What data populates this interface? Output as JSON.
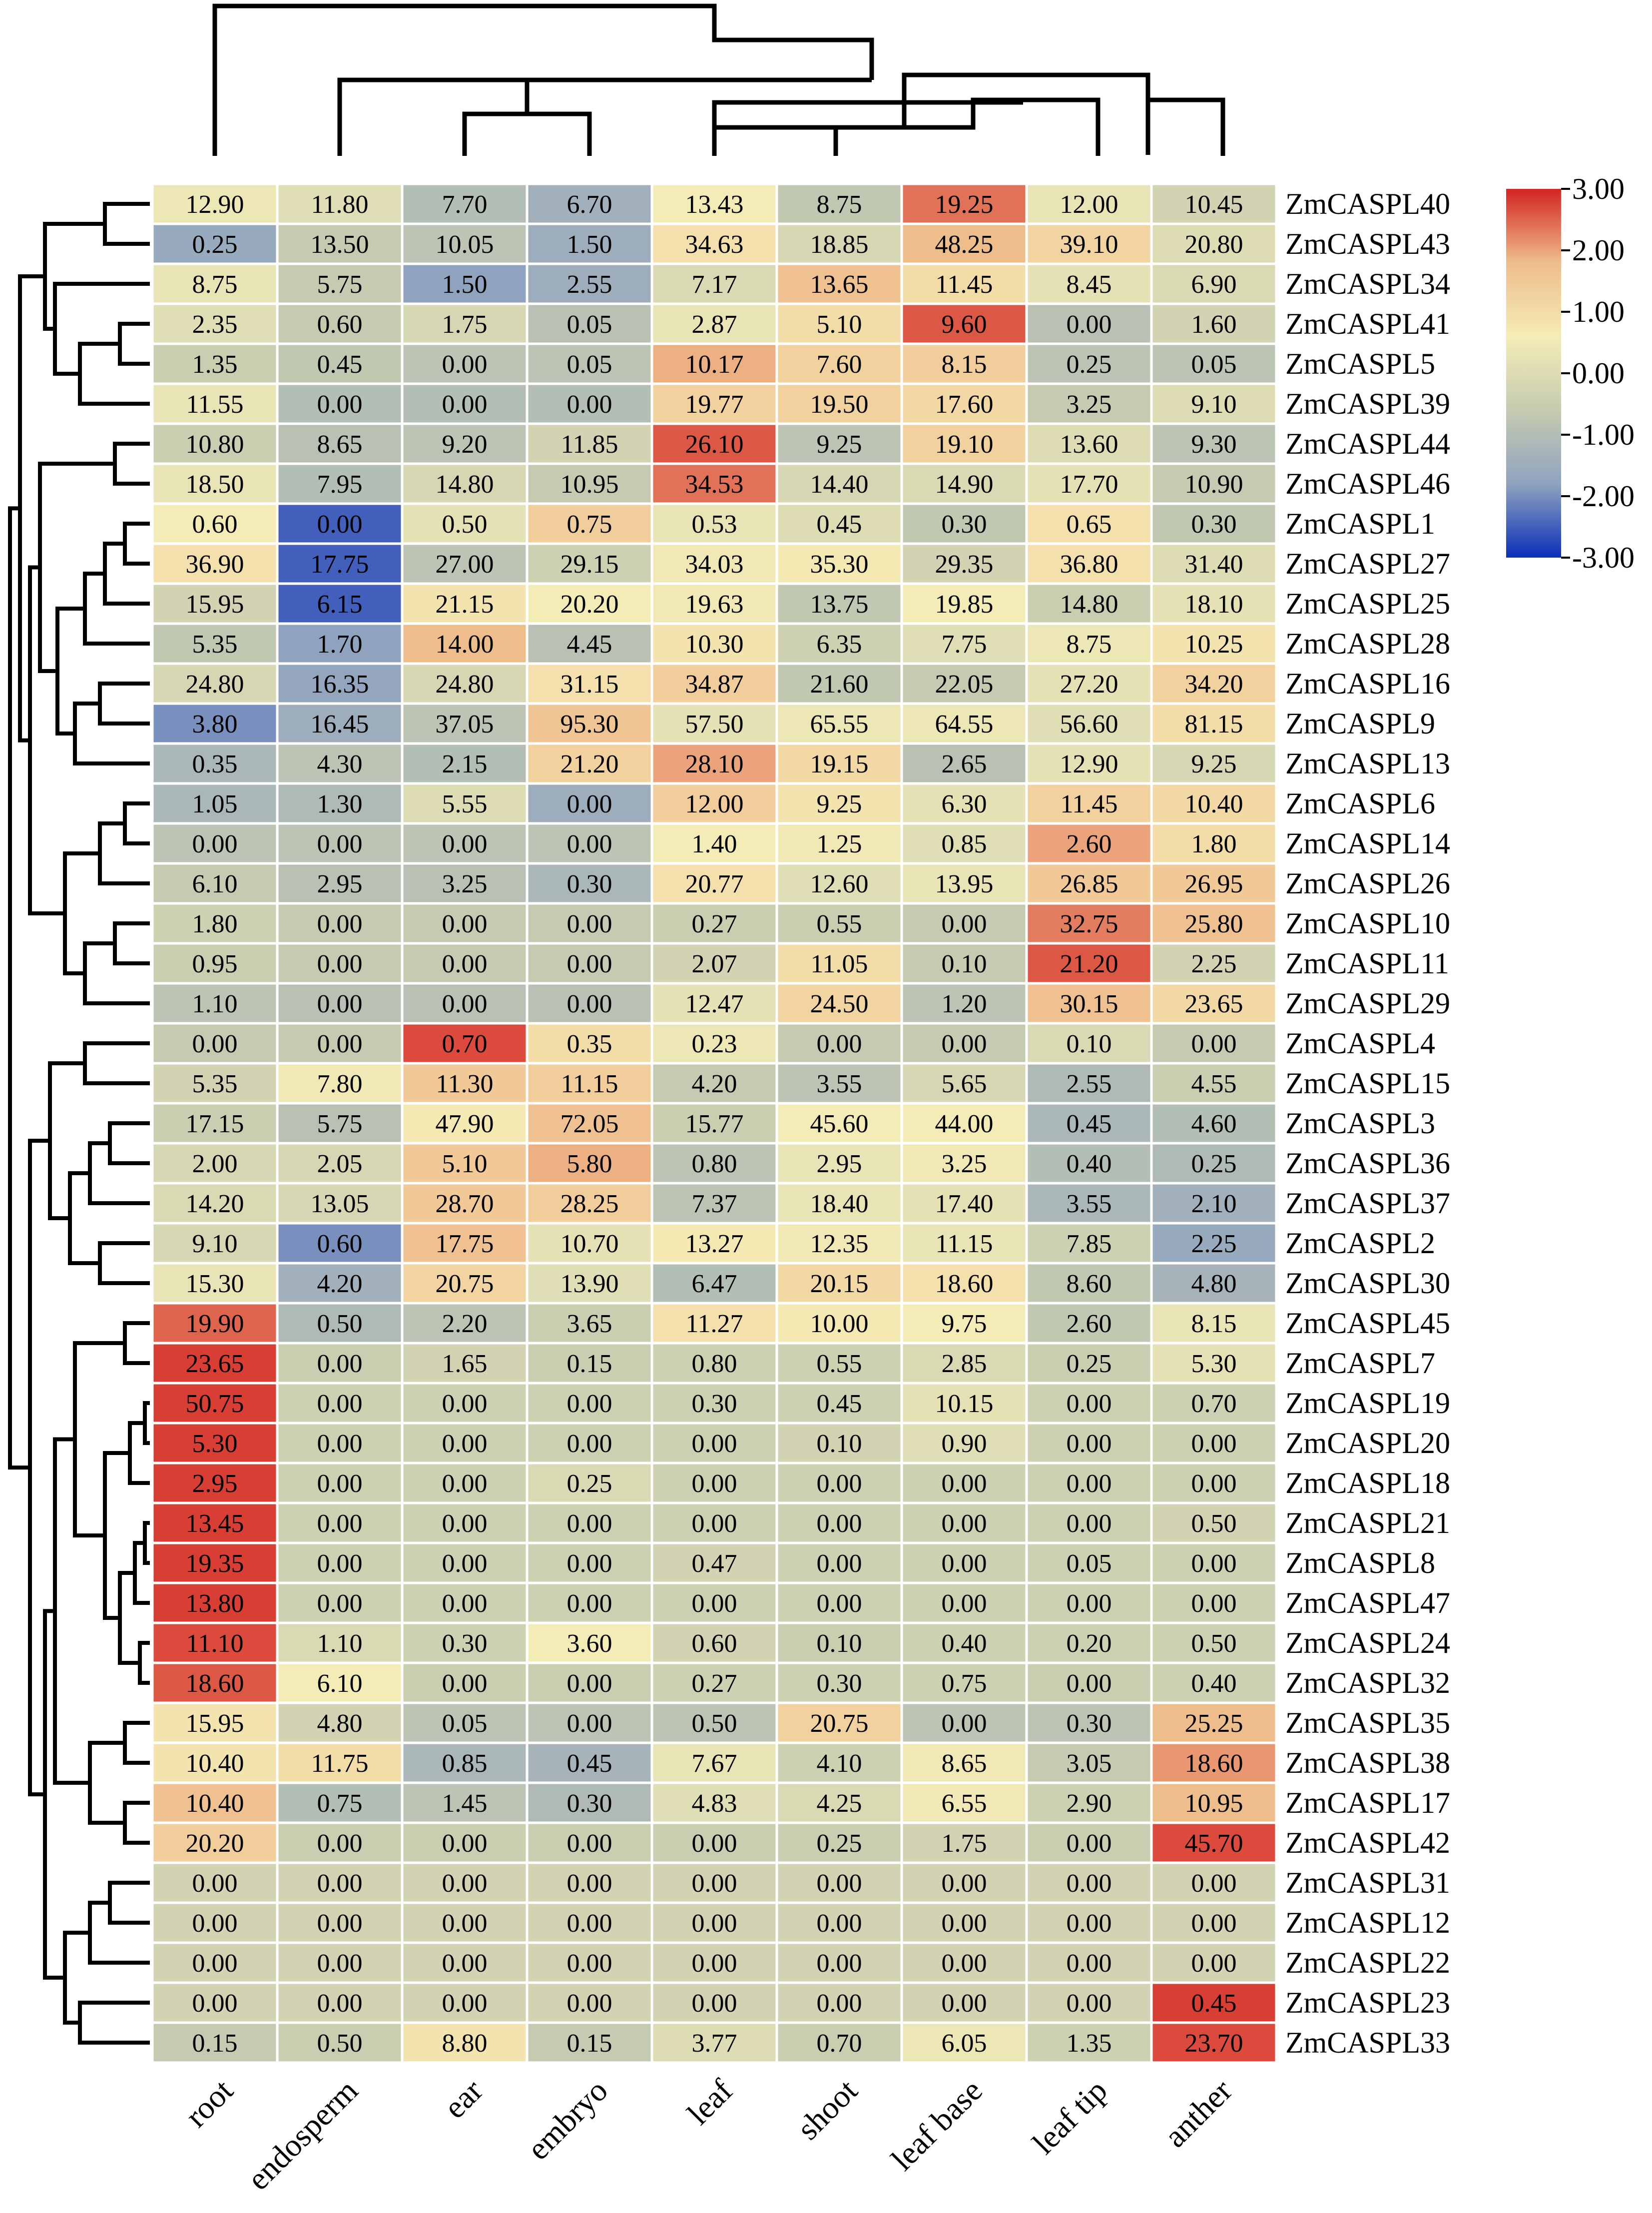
{
  "chart_data": {
    "type": "heatmap",
    "title": "",
    "columns": [
      "root",
      "endosperm",
      "ear",
      "embryo",
      "leaf",
      "shoot",
      "leaf base",
      "leaf tip",
      "anther"
    ],
    "rows": [
      {
        "gene": "ZmCASPL40",
        "values": [
          "12.90",
          "11.80",
          "7.70",
          "6.70",
          "13.43",
          "8.75",
          "19.25",
          "12.00",
          "10.45"
        ],
        "z": [
          0.4,
          0.1,
          -1.0,
          -1.4,
          0.6,
          -0.7,
          2.4,
          0.3,
          -0.3
        ]
      },
      {
        "gene": "ZmCASPL43",
        "values": [
          "0.25",
          "13.50",
          "10.05",
          "1.50",
          "34.63",
          "18.85",
          "48.25",
          "39.10",
          "20.80"
        ],
        "z": [
          -1.6,
          -0.6,
          -0.8,
          -1.5,
          0.9,
          -0.2,
          1.8,
          1.2,
          0.0
        ]
      },
      {
        "gene": "ZmCASPL34",
        "values": [
          "8.75",
          "5.75",
          "1.50",
          "2.55",
          "7.17",
          "13.65",
          "11.45",
          "8.45",
          "6.90"
        ],
        "z": [
          0.3,
          -0.6,
          -1.8,
          -1.5,
          -0.1,
          1.7,
          1.0,
          0.2,
          -0.1
        ]
      },
      {
        "gene": "ZmCASPL41",
        "values": [
          "2.35",
          "0.60",
          "1.75",
          "0.05",
          "2.87",
          "5.10",
          "9.60",
          "0.00",
          "1.60"
        ],
        "z": [
          0.1,
          -0.6,
          -0.2,
          -0.9,
          0.3,
          1.0,
          2.6,
          -0.9,
          -0.3
        ]
      },
      {
        "gene": "ZmCASPL5",
        "values": [
          "1.35",
          "0.45",
          "0.00",
          "0.05",
          "10.17",
          "7.60",
          "8.15",
          "0.25",
          "0.05"
        ],
        "z": [
          -0.5,
          -0.7,
          -0.8,
          -0.8,
          1.9,
          1.3,
          1.4,
          -0.8,
          -0.8
        ]
      },
      {
        "gene": "ZmCASPL39",
        "values": [
          "11.55",
          "0.00",
          "0.00",
          "0.00",
          "19.77",
          "19.50",
          "17.60",
          "3.25",
          "9.10"
        ],
        "z": [
          0.3,
          -1.0,
          -1.0,
          -1.0,
          1.3,
          1.3,
          1.1,
          -0.6,
          0.0
        ]
      },
      {
        "gene": "ZmCASPL44",
        "values": [
          "10.80",
          "8.65",
          "9.20",
          "11.85",
          "26.10",
          "9.25",
          "19.10",
          "13.60",
          "9.30"
        ],
        "z": [
          -0.5,
          -0.9,
          -0.8,
          -0.3,
          2.6,
          -0.8,
          1.3,
          0.0,
          -0.8
        ]
      },
      {
        "gene": "ZmCASPL46",
        "values": [
          "18.50",
          "7.95",
          "14.80",
          "10.95",
          "34.53",
          "14.40",
          "14.90",
          "17.70",
          "10.90"
        ],
        "z": [
          0.3,
          -1.0,
          -0.2,
          -0.6,
          2.4,
          -0.2,
          -0.1,
          0.2,
          -0.6
        ]
      },
      {
        "gene": "ZmCASPL1",
        "values": [
          "0.60",
          "0.00",
          "0.50",
          "0.75",
          "0.53",
          "0.45",
          "0.30",
          "0.65",
          "0.30"
        ],
        "z": [
          0.6,
          -2.5,
          0.2,
          1.4,
          0.3,
          0.0,
          -0.7,
          0.9,
          -0.7
        ]
      },
      {
        "gene": "ZmCASPL27",
        "values": [
          "36.90",
          "17.75",
          "27.00",
          "29.15",
          "34.03",
          "35.30",
          "29.35",
          "36.80",
          "31.40"
        ],
        "z": [
          0.9,
          -2.5,
          -0.8,
          -0.4,
          0.5,
          0.7,
          -0.3,
          0.9,
          0.0
        ]
      },
      {
        "gene": "ZmCASPL25",
        "values": [
          "15.95",
          "6.15",
          "21.15",
          "20.20",
          "19.63",
          "13.75",
          "19.85",
          "14.80",
          "18.10"
        ],
        "z": [
          -0.3,
          -2.5,
          0.8,
          0.6,
          0.5,
          -0.7,
          0.6,
          -0.5,
          0.2
        ]
      },
      {
        "gene": "ZmCASPL28",
        "values": [
          "5.35",
          "1.70",
          "14.00",
          "4.45",
          "10.30",
          "6.35",
          "7.75",
          "8.75",
          "10.25"
        ],
        "z": [
          -0.7,
          -1.8,
          1.8,
          -0.9,
          0.8,
          -0.4,
          0.1,
          0.4,
          0.8
        ]
      },
      {
        "gene": "ZmCASPL16",
        "values": [
          "24.80",
          "16.35",
          "24.80",
          "31.15",
          "34.87",
          "21.60",
          "22.05",
          "27.20",
          "34.20"
        ],
        "z": [
          -0.2,
          -1.7,
          -0.2,
          0.9,
          1.4,
          -0.7,
          -0.6,
          0.2,
          1.3
        ]
      },
      {
        "gene": "ZmCASPL9",
        "values": [
          "3.80",
          "16.45",
          "37.05",
          "95.30",
          "57.50",
          "65.55",
          "64.55",
          "56.60",
          "81.15"
        ],
        "z": [
          -2.0,
          -1.5,
          -0.8,
          1.6,
          0.2,
          0.4,
          0.4,
          0.1,
          1.0
        ]
      },
      {
        "gene": "ZmCASPL13",
        "values": [
          "0.35",
          "4.30",
          "2.15",
          "21.20",
          "28.10",
          "19.15",
          "2.65",
          "12.90",
          "9.25"
        ],
        "z": [
          -1.2,
          -0.8,
          -1.0,
          1.3,
          2.0,
          1.1,
          -0.9,
          0.2,
          -0.2
        ]
      },
      {
        "gene": "ZmCASPL6",
        "values": [
          "1.05",
          "1.30",
          "5.55",
          "0.00",
          "12.00",
          "9.25",
          "6.30",
          "11.45",
          "10.40"
        ],
        "z": [
          -1.2,
          -1.1,
          0.0,
          -1.5,
          1.4,
          0.8,
          0.2,
          1.3,
          1.1
        ]
      },
      {
        "gene": "ZmCASPL14",
        "values": [
          "0.00",
          "0.00",
          "0.00",
          "0.00",
          "1.40",
          "1.25",
          "0.85",
          "2.60",
          "1.80"
        ],
        "z": [
          -0.8,
          -0.8,
          -0.8,
          -0.8,
          0.6,
          0.5,
          0.1,
          2.0,
          1.0
        ]
      },
      {
        "gene": "ZmCASPL26",
        "values": [
          "6.10",
          "2.95",
          "3.25",
          "0.30",
          "20.77",
          "12.60",
          "13.95",
          "26.85",
          "26.95"
        ],
        "z": [
          -0.6,
          -0.9,
          -0.9,
          -1.2,
          0.9,
          0.1,
          0.3,
          1.5,
          1.5
        ]
      },
      {
        "gene": "ZmCASPL10",
        "values": [
          "1.80",
          "0.00",
          "0.00",
          "0.00",
          "0.27",
          "0.55",
          "0.00",
          "32.75",
          "25.80"
        ],
        "z": [
          -0.4,
          -0.6,
          -0.6,
          -0.6,
          -0.5,
          -0.5,
          -0.6,
          2.3,
          1.7
        ]
      },
      {
        "gene": "ZmCASPL11",
        "values": [
          "0.95",
          "0.00",
          "0.00",
          "0.00",
          "2.07",
          "11.05",
          "0.10",
          "21.20",
          "2.25"
        ],
        "z": [
          -0.5,
          -0.6,
          -0.6,
          -0.6,
          -0.3,
          1.0,
          -0.6,
          2.6,
          -0.3
        ]
      },
      {
        "gene": "ZmCASPL29",
        "values": [
          "1.10",
          "0.00",
          "0.00",
          "0.00",
          "12.47",
          "24.50",
          "1.20",
          "30.15",
          "23.65"
        ],
        "z": [
          -0.8,
          -0.9,
          -0.9,
          -0.9,
          0.2,
          1.2,
          -0.8,
          1.7,
          1.1
        ]
      },
      {
        "gene": "ZmCASPL4",
        "values": [
          "0.00",
          "0.00",
          "0.70",
          "0.35",
          "0.23",
          "0.00",
          "0.00",
          "0.10",
          "0.00"
        ],
        "z": [
          -0.6,
          -0.6,
          2.7,
          1.0,
          0.4,
          -0.6,
          -0.6,
          -0.1,
          -0.6
        ]
      },
      {
        "gene": "ZmCASPL15",
        "values": [
          "5.35",
          "7.80",
          "11.30",
          "11.15",
          "4.20",
          "3.55",
          "5.65",
          "2.55",
          "4.55"
        ],
        "z": [
          -0.3,
          0.5,
          1.5,
          1.4,
          -0.6,
          -0.8,
          -0.2,
          -1.1,
          -0.5
        ]
      },
      {
        "gene": "ZmCASPL3",
        "values": [
          "17.15",
          "5.75",
          "47.90",
          "72.05",
          "15.77",
          "45.60",
          "44.00",
          "0.45",
          "4.60"
        ],
        "z": [
          -0.5,
          -0.9,
          0.7,
          1.7,
          -0.5,
          0.6,
          0.6,
          -1.2,
          -1.0
        ]
      },
      {
        "gene": "ZmCASPL36",
        "values": [
          "2.00",
          "2.05",
          "5.10",
          "5.80",
          "0.80",
          "2.95",
          "3.25",
          "0.40",
          "0.25"
        ],
        "z": [
          -0.2,
          -0.2,
          1.5,
          1.9,
          -0.8,
          0.3,
          0.5,
          -1.0,
          -1.1
        ]
      },
      {
        "gene": "ZmCASPL37",
        "values": [
          "14.20",
          "13.05",
          "28.70",
          "28.25",
          "7.37",
          "18.40",
          "17.40",
          "3.55",
          "2.10"
        ],
        "z": [
          -0.1,
          -0.2,
          1.5,
          1.4,
          -0.8,
          0.3,
          0.2,
          -1.2,
          -1.4
        ]
      },
      {
        "gene": "ZmCASPL2",
        "values": [
          "9.10",
          "0.60",
          "17.75",
          "10.70",
          "13.27",
          "12.35",
          "11.15",
          "7.85",
          "2.25"
        ],
        "z": [
          -0.2,
          -2.0,
          1.7,
          0.2,
          0.7,
          0.5,
          0.3,
          -0.4,
          -1.6
        ]
      },
      {
        "gene": "ZmCASPL30",
        "values": [
          "15.30",
          "4.20",
          "20.75",
          "13.90",
          "6.47",
          "20.15",
          "18.60",
          "8.60",
          "4.80"
        ],
        "z": [
          0.3,
          -1.4,
          1.2,
          0.1,
          -1.0,
          1.1,
          0.9,
          -0.7,
          -1.3
        ]
      },
      {
        "gene": "ZmCASPL45",
        "values": [
          "19.90",
          "0.50",
          "2.20",
          "3.65",
          "11.27",
          "10.00",
          "9.75",
          "2.60",
          "8.15"
        ],
        "z": [
          2.5,
          -1.1,
          -0.8,
          -0.5,
          0.9,
          0.7,
          0.6,
          -0.7,
          0.3
        ]
      },
      {
        "gene": "ZmCASPL7",
        "values": [
          "23.65",
          "0.00",
          "1.65",
          "0.15",
          "0.80",
          "0.55",
          "2.85",
          "0.25",
          "5.30"
        ],
        "z": [
          2.8,
          -0.5,
          -0.3,
          -0.5,
          -0.4,
          -0.4,
          -0.1,
          -0.5,
          0.2
        ]
      },
      {
        "gene": "ZmCASPL19",
        "values": [
          "50.75",
          "0.00",
          "0.00",
          "0.00",
          "0.30",
          "0.45",
          "10.15",
          "0.00",
          "0.70"
        ],
        "z": [
          2.8,
          -0.4,
          -0.4,
          -0.4,
          -0.4,
          -0.4,
          0.2,
          -0.4,
          -0.4
        ]
      },
      {
        "gene": "ZmCASPL20",
        "values": [
          "5.30",
          "0.00",
          "0.00",
          "0.00",
          "0.00",
          "0.10",
          "0.90",
          "0.00",
          "0.00"
        ],
        "z": [
          2.8,
          -0.4,
          -0.4,
          -0.4,
          -0.4,
          -0.3,
          0.1,
          -0.4,
          -0.4
        ]
      },
      {
        "gene": "ZmCASPL18",
        "values": [
          "2.95",
          "0.00",
          "0.00",
          "0.25",
          "0.00",
          "0.00",
          "0.00",
          "0.00",
          "0.00"
        ],
        "z": [
          2.8,
          -0.4,
          -0.4,
          -0.1,
          -0.4,
          -0.4,
          -0.4,
          -0.4,
          -0.4
        ]
      },
      {
        "gene": "ZmCASPL21",
        "values": [
          "13.45",
          "0.00",
          "0.00",
          "0.00",
          "0.00",
          "0.00",
          "0.00",
          "0.00",
          "0.50"
        ],
        "z": [
          2.8,
          -0.4,
          -0.4,
          -0.4,
          -0.4,
          -0.4,
          -0.4,
          -0.4,
          -0.3
        ]
      },
      {
        "gene": "ZmCASPL8",
        "values": [
          "19.35",
          "0.00",
          "0.00",
          "0.00",
          "0.47",
          "0.00",
          "0.00",
          "0.05",
          "0.00"
        ],
        "z": [
          2.8,
          -0.4,
          -0.4,
          -0.4,
          -0.3,
          -0.4,
          -0.4,
          -0.4,
          -0.4
        ]
      },
      {
        "gene": "ZmCASPL47",
        "values": [
          "13.80",
          "0.00",
          "0.00",
          "0.00",
          "0.00",
          "0.00",
          "0.00",
          "0.00",
          "0.00"
        ],
        "z": [
          2.8,
          -0.4,
          -0.4,
          -0.4,
          -0.4,
          -0.4,
          -0.4,
          -0.4,
          -0.4
        ]
      },
      {
        "gene": "ZmCASPL24",
        "values": [
          "11.10",
          "1.10",
          "0.30",
          "3.60",
          "0.60",
          "0.10",
          "0.40",
          "0.20",
          "0.50"
        ],
        "z": [
          2.7,
          -0.1,
          -0.4,
          0.6,
          -0.3,
          -0.5,
          -0.4,
          -0.4,
          -0.4
        ]
      },
      {
        "gene": "ZmCASPL32",
        "values": [
          "18.60",
          "6.10",
          "0.00",
          "0.00",
          "0.27",
          "0.30",
          "0.75",
          "0.00",
          "0.40"
        ],
        "z": [
          2.6,
          0.6,
          -0.5,
          -0.5,
          -0.4,
          -0.4,
          -0.4,
          -0.5,
          -0.4
        ]
      },
      {
        "gene": "ZmCASPL35",
        "values": [
          "15.95",
          "4.80",
          "0.05",
          "0.00",
          "0.50",
          "20.75",
          "0.00",
          "0.30",
          "25.25"
        ],
        "z": [
          0.8,
          -0.3,
          -0.8,
          -0.8,
          -0.8,
          1.3,
          -0.8,
          -0.8,
          1.8
        ]
      },
      {
        "gene": "ZmCASPL38",
        "values": [
          "10.40",
          "11.75",
          "0.85",
          "0.45",
          "7.67",
          "4.10",
          "8.65",
          "3.05",
          "18.60"
        ],
        "z": [
          0.8,
          1.0,
          -1.2,
          -1.3,
          0.3,
          -0.4,
          0.5,
          -0.6,
          2.1
        ]
      },
      {
        "gene": "ZmCASPL17",
        "values": [
          "10.40",
          "0.75",
          "1.45",
          "0.30",
          "4.83",
          "4.25",
          "6.55",
          "2.90",
          "10.95"
        ],
        "z": [
          1.7,
          -1.0,
          -0.8,
          -1.1,
          0.1,
          -0.1,
          0.5,
          -0.4,
          1.8
        ]
      },
      {
        "gene": "ZmCASPL42",
        "values": [
          "20.20",
          "0.00",
          "0.00",
          "0.00",
          "0.00",
          "0.25",
          "1.75",
          "0.00",
          "45.70"
        ],
        "z": [
          1.4,
          -0.5,
          -0.5,
          -0.5,
          -0.5,
          -0.5,
          -0.3,
          -0.5,
          2.7
        ]
      },
      {
        "gene": "ZmCASPL31",
        "values": [
          "0.00",
          "0.00",
          "0.00",
          "0.00",
          "0.00",
          "0.00",
          "0.00",
          "0.00",
          "0.00"
        ],
        "z": [
          -0.3,
          -0.3,
          -0.3,
          -0.3,
          -0.3,
          -0.3,
          -0.3,
          -0.3,
          -0.3
        ]
      },
      {
        "gene": "ZmCASPL12",
        "values": [
          "0.00",
          "0.00",
          "0.00",
          "0.00",
          "0.00",
          "0.00",
          "0.00",
          "0.00",
          "0.00"
        ],
        "z": [
          -0.3,
          -0.3,
          -0.3,
          -0.3,
          -0.3,
          -0.3,
          -0.3,
          -0.3,
          -0.3
        ]
      },
      {
        "gene": "ZmCASPL22",
        "values": [
          "0.00",
          "0.00",
          "0.00",
          "0.00",
          "0.00",
          "0.00",
          "0.00",
          "0.00",
          "0.00"
        ],
        "z": [
          -0.3,
          -0.3,
          -0.3,
          -0.3,
          -0.3,
          -0.3,
          -0.3,
          -0.3,
          -0.3
        ]
      },
      {
        "gene": "ZmCASPL23",
        "values": [
          "0.00",
          "0.00",
          "0.00",
          "0.00",
          "0.00",
          "0.00",
          "0.00",
          "0.00",
          "0.45"
        ],
        "z": [
          -0.3,
          -0.3,
          -0.3,
          -0.3,
          -0.3,
          -0.3,
          -0.3,
          -0.3,
          2.8
        ]
      },
      {
        "gene": "ZmCASPL33",
        "values": [
          "0.15",
          "0.50",
          "8.80",
          "0.15",
          "3.77",
          "0.70",
          "6.05",
          "1.35",
          "23.70"
        ],
        "z": [
          -0.6,
          -0.5,
          0.8,
          -0.6,
          0.0,
          -0.5,
          0.4,
          -0.4,
          2.7
        ]
      }
    ],
    "color_scale": {
      "min": -3.0,
      "max": 3.0,
      "stops": [
        "#0a2fb8",
        "#8fa3bf",
        "#c5cbb0",
        "#f4ecb6",
        "#eebd8c",
        "#d42421"
      ],
      "tick_labels": [
        "3.00",
        "2.00",
        "1.00",
        "0.00",
        "-1.00",
        "-2.00",
        "-3.00"
      ],
      "tick_values": [
        3,
        2,
        1,
        0,
        -1,
        -2,
        -3
      ]
    },
    "legend_position": "top-right",
    "column_dendrogram": true,
    "row_dendrogram": true
  }
}
